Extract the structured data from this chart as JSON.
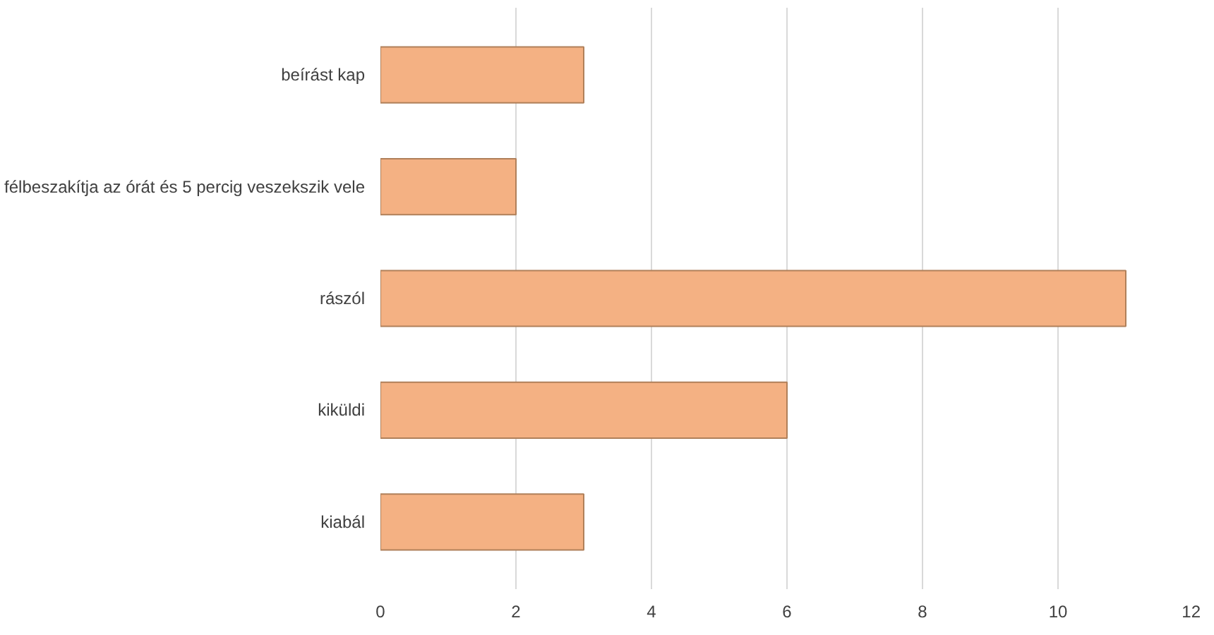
{
  "chart_data": {
    "type": "bar",
    "orientation": "horizontal",
    "categories": [
      "beírást kap",
      "félbeszakítja az órát és 5 percig veszekszik vele",
      "rászól",
      "kiküldi",
      "kiabál"
    ],
    "values": [
      3,
      2,
      11,
      6,
      3
    ],
    "color": "#f4b183",
    "xlim": [
      0,
      12
    ],
    "xticks": [
      0,
      2,
      4,
      6,
      8,
      10,
      12
    ],
    "grid": "x"
  }
}
